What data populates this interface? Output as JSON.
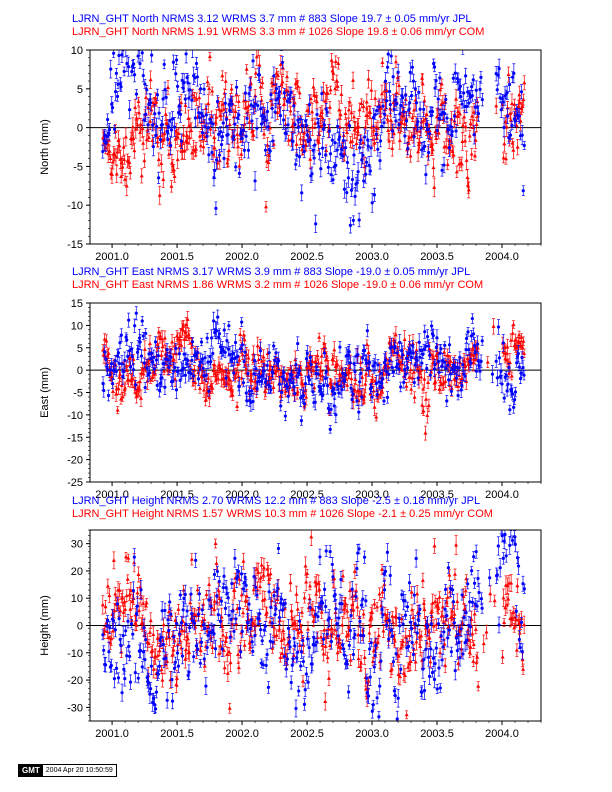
{
  "chart_data": [
    {
      "type": "scatter",
      "component": "North",
      "ylabel": "North (mm)",
      "xlim": [
        2000.83,
        2004.3
      ],
      "ylim": [
        -15,
        10
      ],
      "yticks": [
        -15,
        -10,
        -5,
        0,
        5,
        10
      ],
      "xticks": [
        "2001.0",
        "2001.5",
        "2002.0",
        "2002.5",
        "2003.0",
        "2003.5",
        "2004.0"
      ],
      "title_lines": [
        {
          "text": "LJRN_GHT North NRMS 3.12 WRMS  3.7 mm # 883 Slope  19.7 ±  0.05 mm/yr JPL",
          "color": "#0000ff"
        },
        {
          "text": "LJRN_GHT North NRMS 1.91 WRMS  3.3 mm # 1026 Slope  19.8 ±  0.06 mm/yr COM",
          "color": "#ff0000"
        }
      ],
      "series": [
        {
          "name": "JPL",
          "color": "#0000ff",
          "marker": "circle",
          "n": 883,
          "rms": 3.7,
          "x_start": 2000.93,
          "x_end": 2004.17,
          "gaps": [
            [
              2003.85,
              2003.95
            ]
          ]
        },
        {
          "name": "COM",
          "color": "#ff0000",
          "marker": "triangle",
          "n": 1026,
          "rms": 3.3,
          "x_start": 2000.93,
          "x_end": 2004.17,
          "gaps": [
            [
              2003.82,
              2004.0
            ]
          ]
        }
      ]
    },
    {
      "type": "scatter",
      "component": "East",
      "ylabel": "East (mm)",
      "xlim": [
        2000.83,
        2004.3
      ],
      "ylim": [
        -25,
        15
      ],
      "yticks": [
        -25,
        -20,
        -15,
        -10,
        -5,
        0,
        5,
        10,
        15
      ],
      "xticks": [
        "2001.0",
        "2001.5",
        "2002.0",
        "2002.5",
        "2003.0",
        "2003.5",
        "2004.0"
      ],
      "title_lines": [
        {
          "text": "LJRN_GHT East NRMS 3.17 WRMS  3.9 mm # 883 Slope  -19.0 ±  0.05 mm/yr JPL",
          "color": "#0000ff"
        },
        {
          "text": "LJRN_GHT East NRMS 1.86 WRMS  3.2 mm # 1026 Slope  -19.0 ±  0.06 mm/yr COM",
          "color": "#ff0000"
        }
      ],
      "series": [
        {
          "name": "JPL",
          "color": "#0000ff",
          "marker": "circle",
          "n": 883,
          "rms": 3.9,
          "x_start": 2000.93,
          "x_end": 2004.17,
          "gaps": [
            [
              2003.85,
              2003.95
            ]
          ]
        },
        {
          "name": "COM",
          "color": "#ff0000",
          "marker": "triangle",
          "n": 1026,
          "rms": 3.2,
          "x_start": 2000.93,
          "x_end": 2004.17,
          "gaps": [
            [
              2003.82,
              2004.0
            ]
          ]
        }
      ]
    },
    {
      "type": "scatter",
      "component": "Height",
      "ylabel": "Height (mm)",
      "xlim": [
        2000.83,
        2004.3
      ],
      "ylim": [
        -35,
        35
      ],
      "yticks": [
        -30,
        -20,
        -10,
        0,
        10,
        20,
        30
      ],
      "xticks": [
        "2001.0",
        "2001.5",
        "2002.0",
        "2002.5",
        "2003.0",
        "2003.5",
        "2004.0"
      ],
      "title_lines": [
        {
          "text": "LJRN_GHT Height NRMS 2.70 WRMS 12.2 mm # 883 Slope   -2.5 ±  0.18 mm/yr JPL",
          "color": "#0000ff"
        },
        {
          "text": "LJRN_GHT Height NRMS 1.57 WRMS 10.3 mm # 1026 Slope   -2.1 ±  0.25 mm/yr COM",
          "color": "#ff0000"
        }
      ],
      "series": [
        {
          "name": "JPL",
          "color": "#0000ff",
          "marker": "circle",
          "n": 883,
          "rms": 12.2,
          "x_start": 2000.93,
          "x_end": 2004.17,
          "gaps": [
            [
              2003.85,
              2003.95
            ]
          ]
        },
        {
          "name": "COM",
          "color": "#ff0000",
          "marker": "triangle",
          "n": 1026,
          "rms": 10.3,
          "x_start": 2000.93,
          "x_end": 2004.17,
          "gaps": [
            [
              2003.82,
              2004.0
            ]
          ]
        }
      ]
    }
  ],
  "footer": {
    "logo": "GMT",
    "timestamp": "2004 Apr 20 10:50:59"
  }
}
